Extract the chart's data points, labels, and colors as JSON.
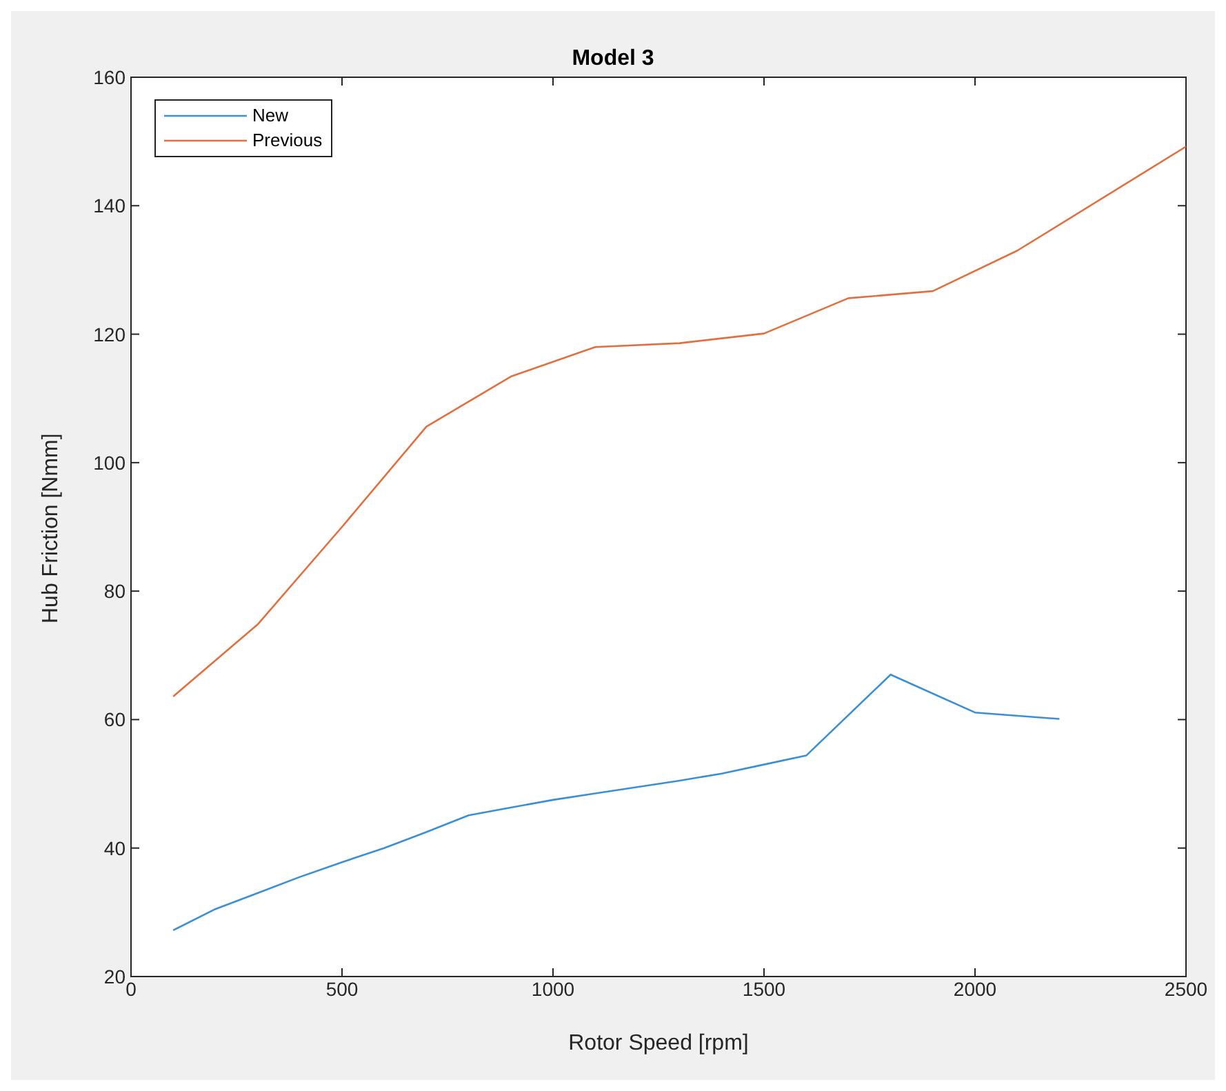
{
  "chart_data": {
    "type": "line",
    "title": "Model 3",
    "xlabel": "Rotor Speed [rpm]",
    "ylabel": "Hub Friction [Nmm]",
    "series": [
      {
        "name": "New",
        "color": "#3b8fd4",
        "x": [
          100,
          200,
          300,
          400,
          500,
          600,
          700,
          800,
          900,
          1000,
          1100,
          1200,
          1300,
          1400,
          1500,
          1600,
          1800,
          2000,
          2200
        ],
        "values": [
          27.2,
          30.5,
          33,
          35.5,
          37.8,
          40,
          42.5,
          45.1,
          46.3,
          47.5,
          48.5,
          49.5,
          50.5,
          51.6,
          53,
          54.4,
          67,
          61.1,
          60.1
        ]
      },
      {
        "name": "Previous",
        "color": "#e2703f",
        "x": [
          100,
          300,
          500,
          700,
          900,
          1100,
          1300,
          1500,
          1700,
          1900,
          2100,
          2500
        ],
        "values": [
          63.6,
          74.8,
          90,
          105.6,
          113.4,
          118,
          118.6,
          120.1,
          125.6,
          126.7,
          133,
          149.2
        ]
      }
    ],
    "xlim": [
      0,
      2500
    ],
    "xticks": [
      0,
      500,
      1000,
      1500,
      2000,
      2500
    ],
    "ylim": [
      20,
      160
    ],
    "yticks": [
      20,
      40,
      60,
      80,
      100,
      120,
      140,
      160
    ],
    "legend": "top left",
    "marker": "none",
    "line_style": "solid"
  }
}
